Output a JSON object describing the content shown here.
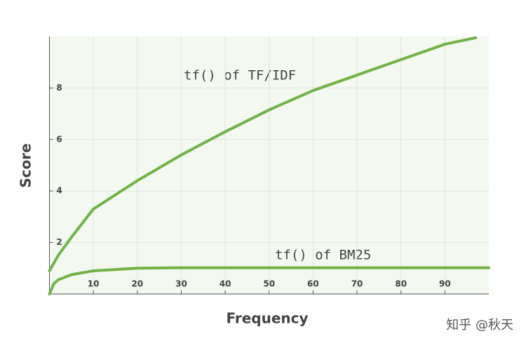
{
  "chart_data": {
    "type": "line",
    "x_label": "Frequency",
    "y_label": "Score",
    "x": [
      0,
      1,
      2,
      5,
      10,
      20,
      30,
      40,
      50,
      60,
      70,
      80,
      90,
      97,
      100
    ],
    "series": [
      {
        "name": "tf() of TF/IDF",
        "color": "#72b347",
        "values": [
          0.9,
          1.2,
          1.5,
          2.2,
          3.3,
          4.4,
          5.4,
          6.3,
          7.15,
          7.9,
          8.5,
          9.1,
          9.7,
          9.95,
          null
        ]
      },
      {
        "name": "tf() of BM25",
        "color": "#72b347",
        "values": [
          0,
          0.4,
          0.55,
          0.75,
          0.9,
          1.0,
          1.02,
          1.02,
          1.02,
          1.02,
          1.02,
          1.02,
          1.02,
          1.02,
          1.02
        ]
      }
    ],
    "xlim": [
      0,
      100
    ],
    "ylim": [
      0,
      10
    ],
    "xticks": [
      10,
      20,
      30,
      40,
      50,
      60,
      70,
      80,
      90
    ],
    "yticks": [
      2,
      4,
      6,
      8
    ],
    "grid": true,
    "watermark": "知乎 @秋天"
  }
}
